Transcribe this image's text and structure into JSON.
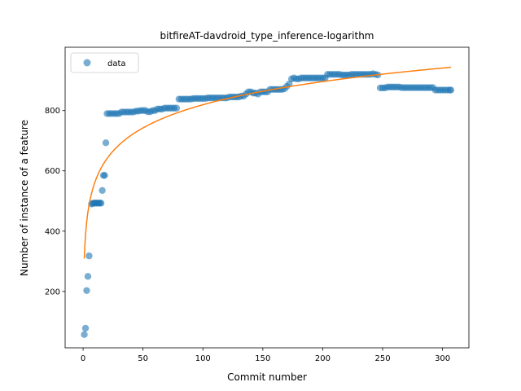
{
  "chart_data": {
    "type": "scatter",
    "title": "bitfireAT-davdroid_type_inference-logarithm",
    "xlabel": "Commit number",
    "ylabel": "Number of instance of a feature",
    "xlim": [
      -15,
      322
    ],
    "ylim": [
      13,
      1010
    ],
    "xticks": [
      0,
      50,
      100,
      150,
      200,
      250,
      300
    ],
    "yticks": [
      200,
      400,
      600,
      800
    ],
    "grid": false,
    "legend": {
      "placement": "top-left",
      "entries": [
        "data"
      ]
    },
    "colors": {
      "data": "#1f77b4",
      "fit": "#ff7f0e"
    },
    "series": [
      {
        "name": "data",
        "kind": "scatter",
        "points": [
          [
            1,
            57
          ],
          [
            2,
            78
          ],
          [
            3,
            203
          ],
          [
            4,
            250
          ],
          [
            5,
            318
          ],
          [
            7,
            490
          ],
          [
            8,
            492
          ],
          [
            9,
            493
          ],
          [
            10,
            493
          ],
          [
            11,
            493
          ],
          [
            12,
            493
          ],
          [
            13,
            493
          ],
          [
            14,
            493
          ],
          [
            15,
            493
          ],
          [
            16,
            535
          ],
          [
            17,
            585
          ],
          [
            18,
            585
          ],
          [
            19,
            693
          ],
          [
            20,
            790
          ],
          [
            22,
            790
          ],
          [
            24,
            790
          ],
          [
            26,
            790
          ],
          [
            28,
            790
          ],
          [
            30,
            790
          ],
          [
            32,
            795
          ],
          [
            34,
            795
          ],
          [
            36,
            795
          ],
          [
            38,
            795
          ],
          [
            40,
            795
          ],
          [
            42,
            795
          ],
          [
            44,
            798
          ],
          [
            46,
            798
          ],
          [
            48,
            800
          ],
          [
            50,
            800
          ],
          [
            52,
            800
          ],
          [
            54,
            796
          ],
          [
            56,
            796
          ],
          [
            58,
            800
          ],
          [
            60,
            800
          ],
          [
            62,
            805
          ],
          [
            64,
            805
          ],
          [
            66,
            805
          ],
          [
            68,
            808
          ],
          [
            70,
            808
          ],
          [
            72,
            808
          ],
          [
            74,
            808
          ],
          [
            76,
            808
          ],
          [
            78,
            808
          ],
          [
            80,
            838
          ],
          [
            82,
            838
          ],
          [
            84,
            838
          ],
          [
            86,
            838
          ],
          [
            88,
            838
          ],
          [
            90,
            838
          ],
          [
            92,
            840
          ],
          [
            94,
            840
          ],
          [
            96,
            840
          ],
          [
            98,
            840
          ],
          [
            100,
            840
          ],
          [
            102,
            840
          ],
          [
            104,
            842
          ],
          [
            106,
            842
          ],
          [
            108,
            842
          ],
          [
            110,
            842
          ],
          [
            112,
            842
          ],
          [
            114,
            842
          ],
          [
            116,
            842
          ],
          [
            118,
            842
          ],
          [
            120,
            842
          ],
          [
            122,
            845
          ],
          [
            124,
            845
          ],
          [
            126,
            845
          ],
          [
            128,
            845
          ],
          [
            130,
            845
          ],
          [
            132,
            848
          ],
          [
            134,
            848
          ],
          [
            136,
            855
          ],
          [
            138,
            862
          ],
          [
            140,
            862
          ],
          [
            142,
            858
          ],
          [
            144,
            858
          ],
          [
            146,
            855
          ],
          [
            148,
            862
          ],
          [
            150,
            862
          ],
          [
            152,
            862
          ],
          [
            154,
            862
          ],
          [
            156,
            870
          ],
          [
            158,
            870
          ],
          [
            160,
            870
          ],
          [
            162,
            870
          ],
          [
            164,
            870
          ],
          [
            166,
            870
          ],
          [
            168,
            872
          ],
          [
            170,
            880
          ],
          [
            172,
            888
          ],
          [
            174,
            905
          ],
          [
            176,
            908
          ],
          [
            178,
            905
          ],
          [
            180,
            905
          ],
          [
            182,
            908
          ],
          [
            184,
            908
          ],
          [
            186,
            908
          ],
          [
            188,
            908
          ],
          [
            190,
            908
          ],
          [
            192,
            908
          ],
          [
            194,
            908
          ],
          [
            196,
            908
          ],
          [
            198,
            908
          ],
          [
            200,
            908
          ],
          [
            202,
            908
          ],
          [
            204,
            920
          ],
          [
            206,
            920
          ],
          [
            208,
            920
          ],
          [
            210,
            920
          ],
          [
            212,
            920
          ],
          [
            214,
            920
          ],
          [
            216,
            918
          ],
          [
            218,
            918
          ],
          [
            220,
            918
          ],
          [
            222,
            918
          ],
          [
            224,
            920
          ],
          [
            226,
            920
          ],
          [
            228,
            920
          ],
          [
            230,
            920
          ],
          [
            232,
            920
          ],
          [
            234,
            920
          ],
          [
            236,
            920
          ],
          [
            238,
            920
          ],
          [
            240,
            920
          ],
          [
            242,
            922
          ],
          [
            244,
            920
          ],
          [
            246,
            918
          ],
          [
            248,
            875
          ],
          [
            250,
            875
          ],
          [
            252,
            875
          ],
          [
            254,
            878
          ],
          [
            256,
            878
          ],
          [
            258,
            878
          ],
          [
            260,
            878
          ],
          [
            262,
            878
          ],
          [
            264,
            878
          ],
          [
            266,
            876
          ],
          [
            268,
            876
          ],
          [
            270,
            876
          ],
          [
            272,
            876
          ],
          [
            274,
            876
          ],
          [
            276,
            876
          ],
          [
            278,
            876
          ],
          [
            280,
            876
          ],
          [
            282,
            876
          ],
          [
            284,
            876
          ],
          [
            286,
            876
          ],
          [
            288,
            876
          ],
          [
            290,
            876
          ],
          [
            292,
            876
          ],
          [
            294,
            868
          ],
          [
            296,
            868
          ],
          [
            298,
            868
          ],
          [
            300,
            868
          ],
          [
            302,
            868
          ],
          [
            304,
            868
          ],
          [
            306,
            868
          ],
          [
            307,
            868
          ]
        ]
      },
      {
        "name": "",
        "kind": "line",
        "x_range": [
          1,
          307
        ],
        "fit": {
          "a": 309,
          "b": 110.8
        }
      }
    ]
  }
}
